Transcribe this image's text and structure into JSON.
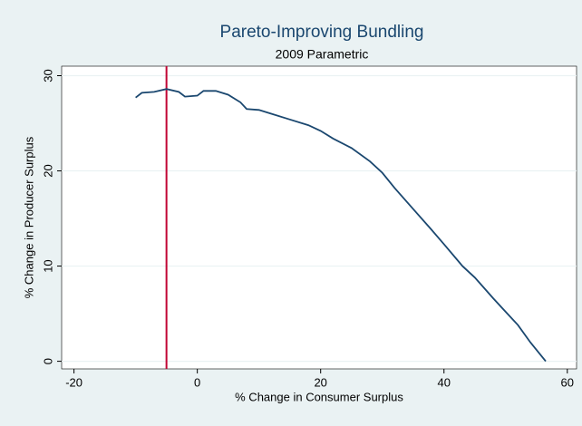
{
  "chart_data": {
    "type": "line",
    "title": "Pareto-Improving Bundling",
    "subtitle": "2009 Parametric",
    "x_label": "% Change in Consumer Surplus",
    "y_label": "% Change in Producer Surplus",
    "series": [
      {
        "color": "#1a476f",
        "x": [
          -10,
          -9,
          -7,
          -5,
          -3,
          -2,
          0,
          1,
          3,
          5,
          7,
          8,
          10,
          12,
          15,
          18,
          20,
          22,
          25,
          28,
          30,
          32,
          35,
          38,
          40,
          43,
          45,
          48,
          50,
          52,
          54,
          56.5
        ],
        "values": [
          27.7,
          28.2,
          28.3,
          28.6,
          28.3,
          27.8,
          27.9,
          28.4,
          28.4,
          28.0,
          27.2,
          26.5,
          26.4,
          26.0,
          25.4,
          24.8,
          24.2,
          23.4,
          22.4,
          21.0,
          19.8,
          18.2,
          16.0,
          13.8,
          12.3,
          10.0,
          8.8,
          6.6,
          5.2,
          3.8,
          2.0,
          0
        ]
      }
    ],
    "vline": {
      "x": -5,
      "color": "#c10534"
    },
    "xlim": [
      -22,
      61.5
    ],
    "xticks": [
      -20,
      0,
      20,
      40,
      60
    ],
    "ylim": [
      -0.8,
      31
    ],
    "yticks": [
      0,
      10,
      20,
      30
    ],
    "grid": true
  }
}
